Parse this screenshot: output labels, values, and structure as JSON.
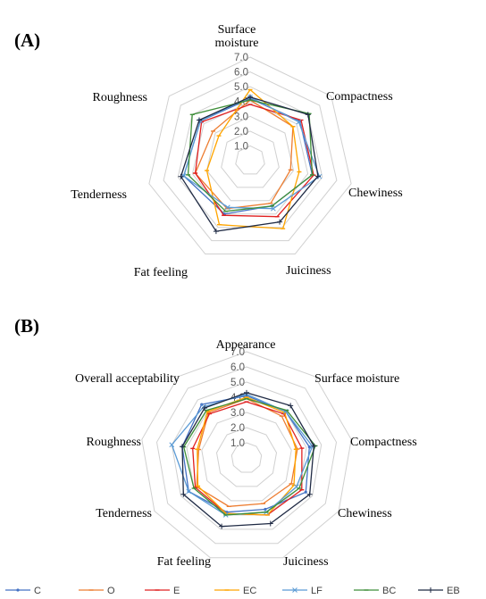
{
  "chart_data": [
    {
      "type": "radar",
      "panel_label": "(A)",
      "axes": [
        "Surface moisture",
        "Compactness",
        "Chewiness",
        "Juiciness",
        "Fat feeling",
        "Tenderness",
        "Roughness"
      ],
      "ticks": [
        "1.0",
        "2.0",
        "3.0",
        "4.0",
        "5.0",
        "6.0",
        "7.0"
      ],
      "rlim": [
        0,
        7
      ],
      "grid": true,
      "legend": "bottom",
      "series": [
        {
          "name": "C",
          "color": "#4472c4",
          "marker": "dot",
          "values": [
            4.2,
            4.3,
            4.3,
            3.4,
            4.0,
            4.6,
            4.3
          ]
        },
        {
          "name": "O",
          "color": "#ed7d31",
          "marker": "dash",
          "values": [
            4.1,
            3.7,
            2.8,
            3.2,
            3.6,
            3.8,
            3.2
          ]
        },
        {
          "name": "E",
          "color": "#e02020",
          "marker": "dash",
          "values": [
            3.8,
            4.4,
            4.4,
            4.2,
            4.1,
            3.8,
            4.2
          ]
        },
        {
          "name": "EC",
          "color": "#ffa500",
          "marker": "dash",
          "values": [
            4.8,
            3.7,
            3.4,
            5.1,
            4.8,
            3.0,
            2.7
          ]
        },
        {
          "name": "LF",
          "color": "#5b9bd5",
          "marker": "x",
          "values": [
            4.3,
            4.2,
            4.8,
            3.6,
            3.5,
            4.6,
            4.3
          ]
        },
        {
          "name": "BC",
          "color": "#3f8f3a",
          "marker": "dash",
          "values": [
            4.1,
            5.1,
            4.3,
            3.4,
            3.8,
            4.3,
            5.0
          ]
        },
        {
          "name": "EB",
          "color": "#1f2a44",
          "marker": "plus",
          "values": [
            4.3,
            5.0,
            4.7,
            4.6,
            5.3,
            4.8,
            4.4
          ]
        }
      ]
    },
    {
      "type": "radar",
      "panel_label": "(B)",
      "axes": [
        "Appearance",
        "Surface moisture",
        "Compactness",
        "Chewiness",
        "Juiciness",
        "Fat feeling",
        "Tenderness",
        "Roughness",
        "Overall acceptability"
      ],
      "ticks": [
        "1.0",
        "2.0",
        "3.0",
        "4.0",
        "5.0",
        "6.0",
        "7.0"
      ],
      "rlim": [
        0,
        7
      ],
      "grid": true,
      "legend": "bottom",
      "series": [
        {
          "name": "C",
          "color": "#4472c4",
          "marker": "dot",
          "values": [
            4.1,
            4.0,
            4.2,
            4.5,
            3.6,
            3.8,
            4.4,
            4.3,
            4.6
          ]
        },
        {
          "name": "O",
          "color": "#ed7d31",
          "marker": "dash",
          "values": [
            3.9,
            3.6,
            3.4,
            3.4,
            3.2,
            3.4,
            3.8,
            3.2,
            3.9
          ]
        },
        {
          "name": "E",
          "color": "#e02020",
          "marker": "dash",
          "values": [
            3.7,
            3.8,
            3.7,
            4.2,
            4.0,
            3.9,
            3.9,
            3.6,
            3.8
          ]
        },
        {
          "name": "EC",
          "color": "#ffa500",
          "marker": "dash",
          "values": [
            4.0,
            3.9,
            3.3,
            3.6,
            4.0,
            3.9,
            3.7,
            3.3,
            4.0
          ]
        },
        {
          "name": "LF",
          "color": "#5b9bd5",
          "marker": "x",
          "values": [
            4.2,
            4.0,
            4.4,
            3.8,
            3.8,
            4.0,
            4.4,
            5.0,
            4.4
          ]
        },
        {
          "name": "BC",
          "color": "#3f8f3a",
          "marker": "dash",
          "values": [
            3.9,
            4.1,
            4.6,
            4.0,
            3.8,
            4.0,
            4.0,
            4.2,
            4.1
          ]
        },
        {
          "name": "EB",
          "color": "#1f2a44",
          "marker": "plus",
          "values": [
            4.3,
            4.5,
            4.5,
            4.8,
            4.6,
            4.8,
            4.8,
            4.3,
            4.3
          ]
        }
      ]
    }
  ]
}
